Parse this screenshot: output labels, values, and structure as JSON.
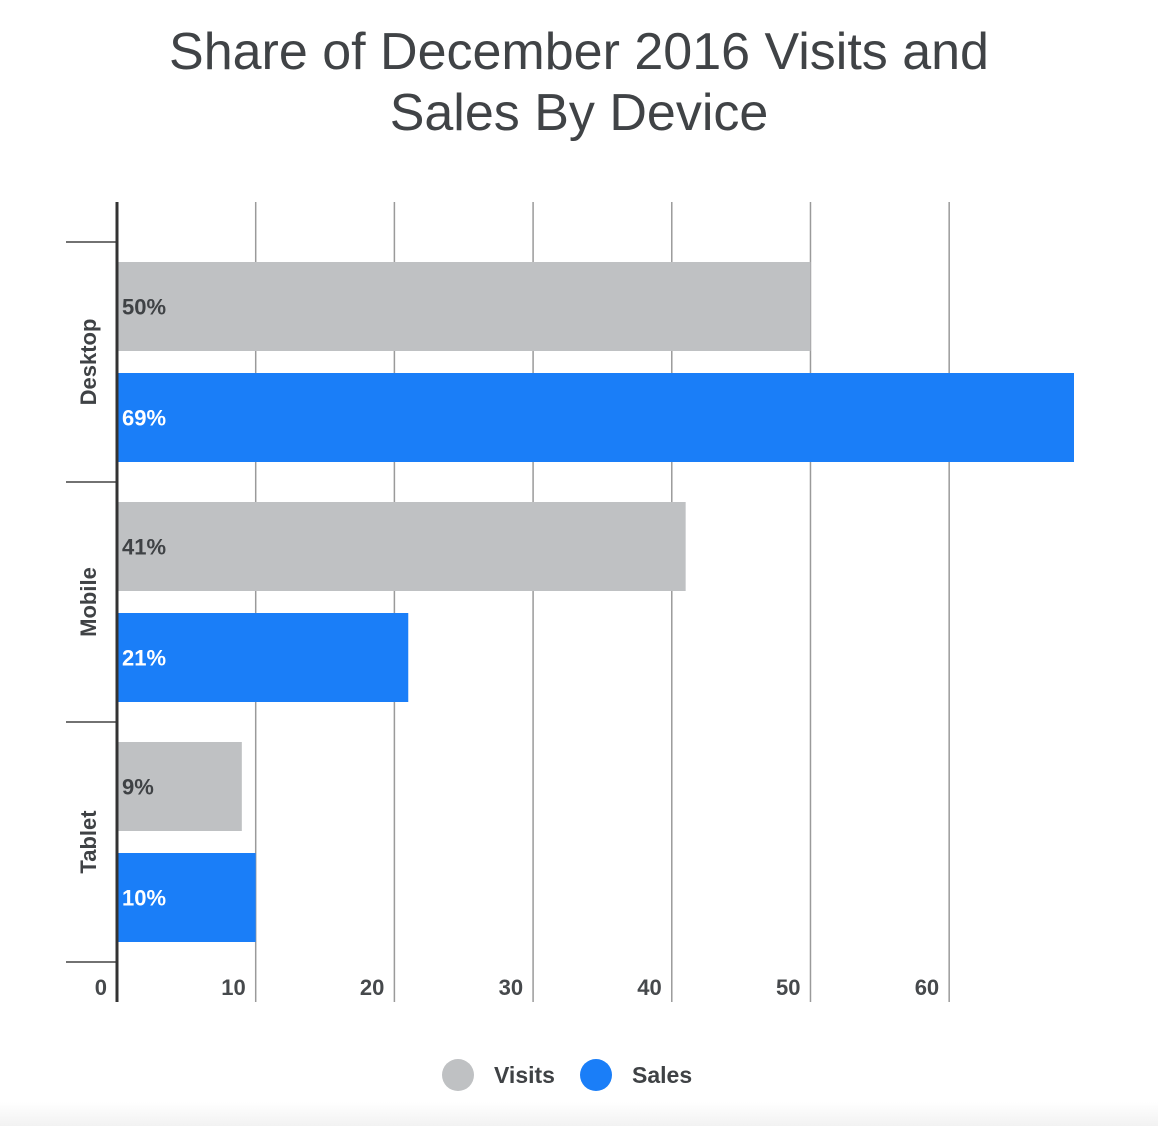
{
  "chart_data": {
    "type": "bar",
    "orientation": "horizontal",
    "title_lines": [
      "Share of December 2016 Visits and",
      "Sales By Device"
    ],
    "categories": [
      "Desktop",
      "Mobile",
      "Tablet"
    ],
    "series": [
      {
        "name": "Visits",
        "values": [
          50,
          41,
          9
        ],
        "labels": [
          "50%",
          "41%",
          "9%"
        ],
        "color": "#bfc1c3",
        "label_color": "#3f4245"
      },
      {
        "name": "Sales",
        "values": [
          69,
          21,
          10
        ],
        "labels": [
          "69%",
          "21%",
          "10%"
        ],
        "color": "#1a7ef8",
        "label_color": "#ffffff"
      }
    ],
    "x_ticks": [
      0,
      10,
      20,
      30,
      40,
      50,
      60
    ],
    "xlim": [
      0,
      69
    ],
    "grid": true,
    "legend_position": "bottom"
  }
}
